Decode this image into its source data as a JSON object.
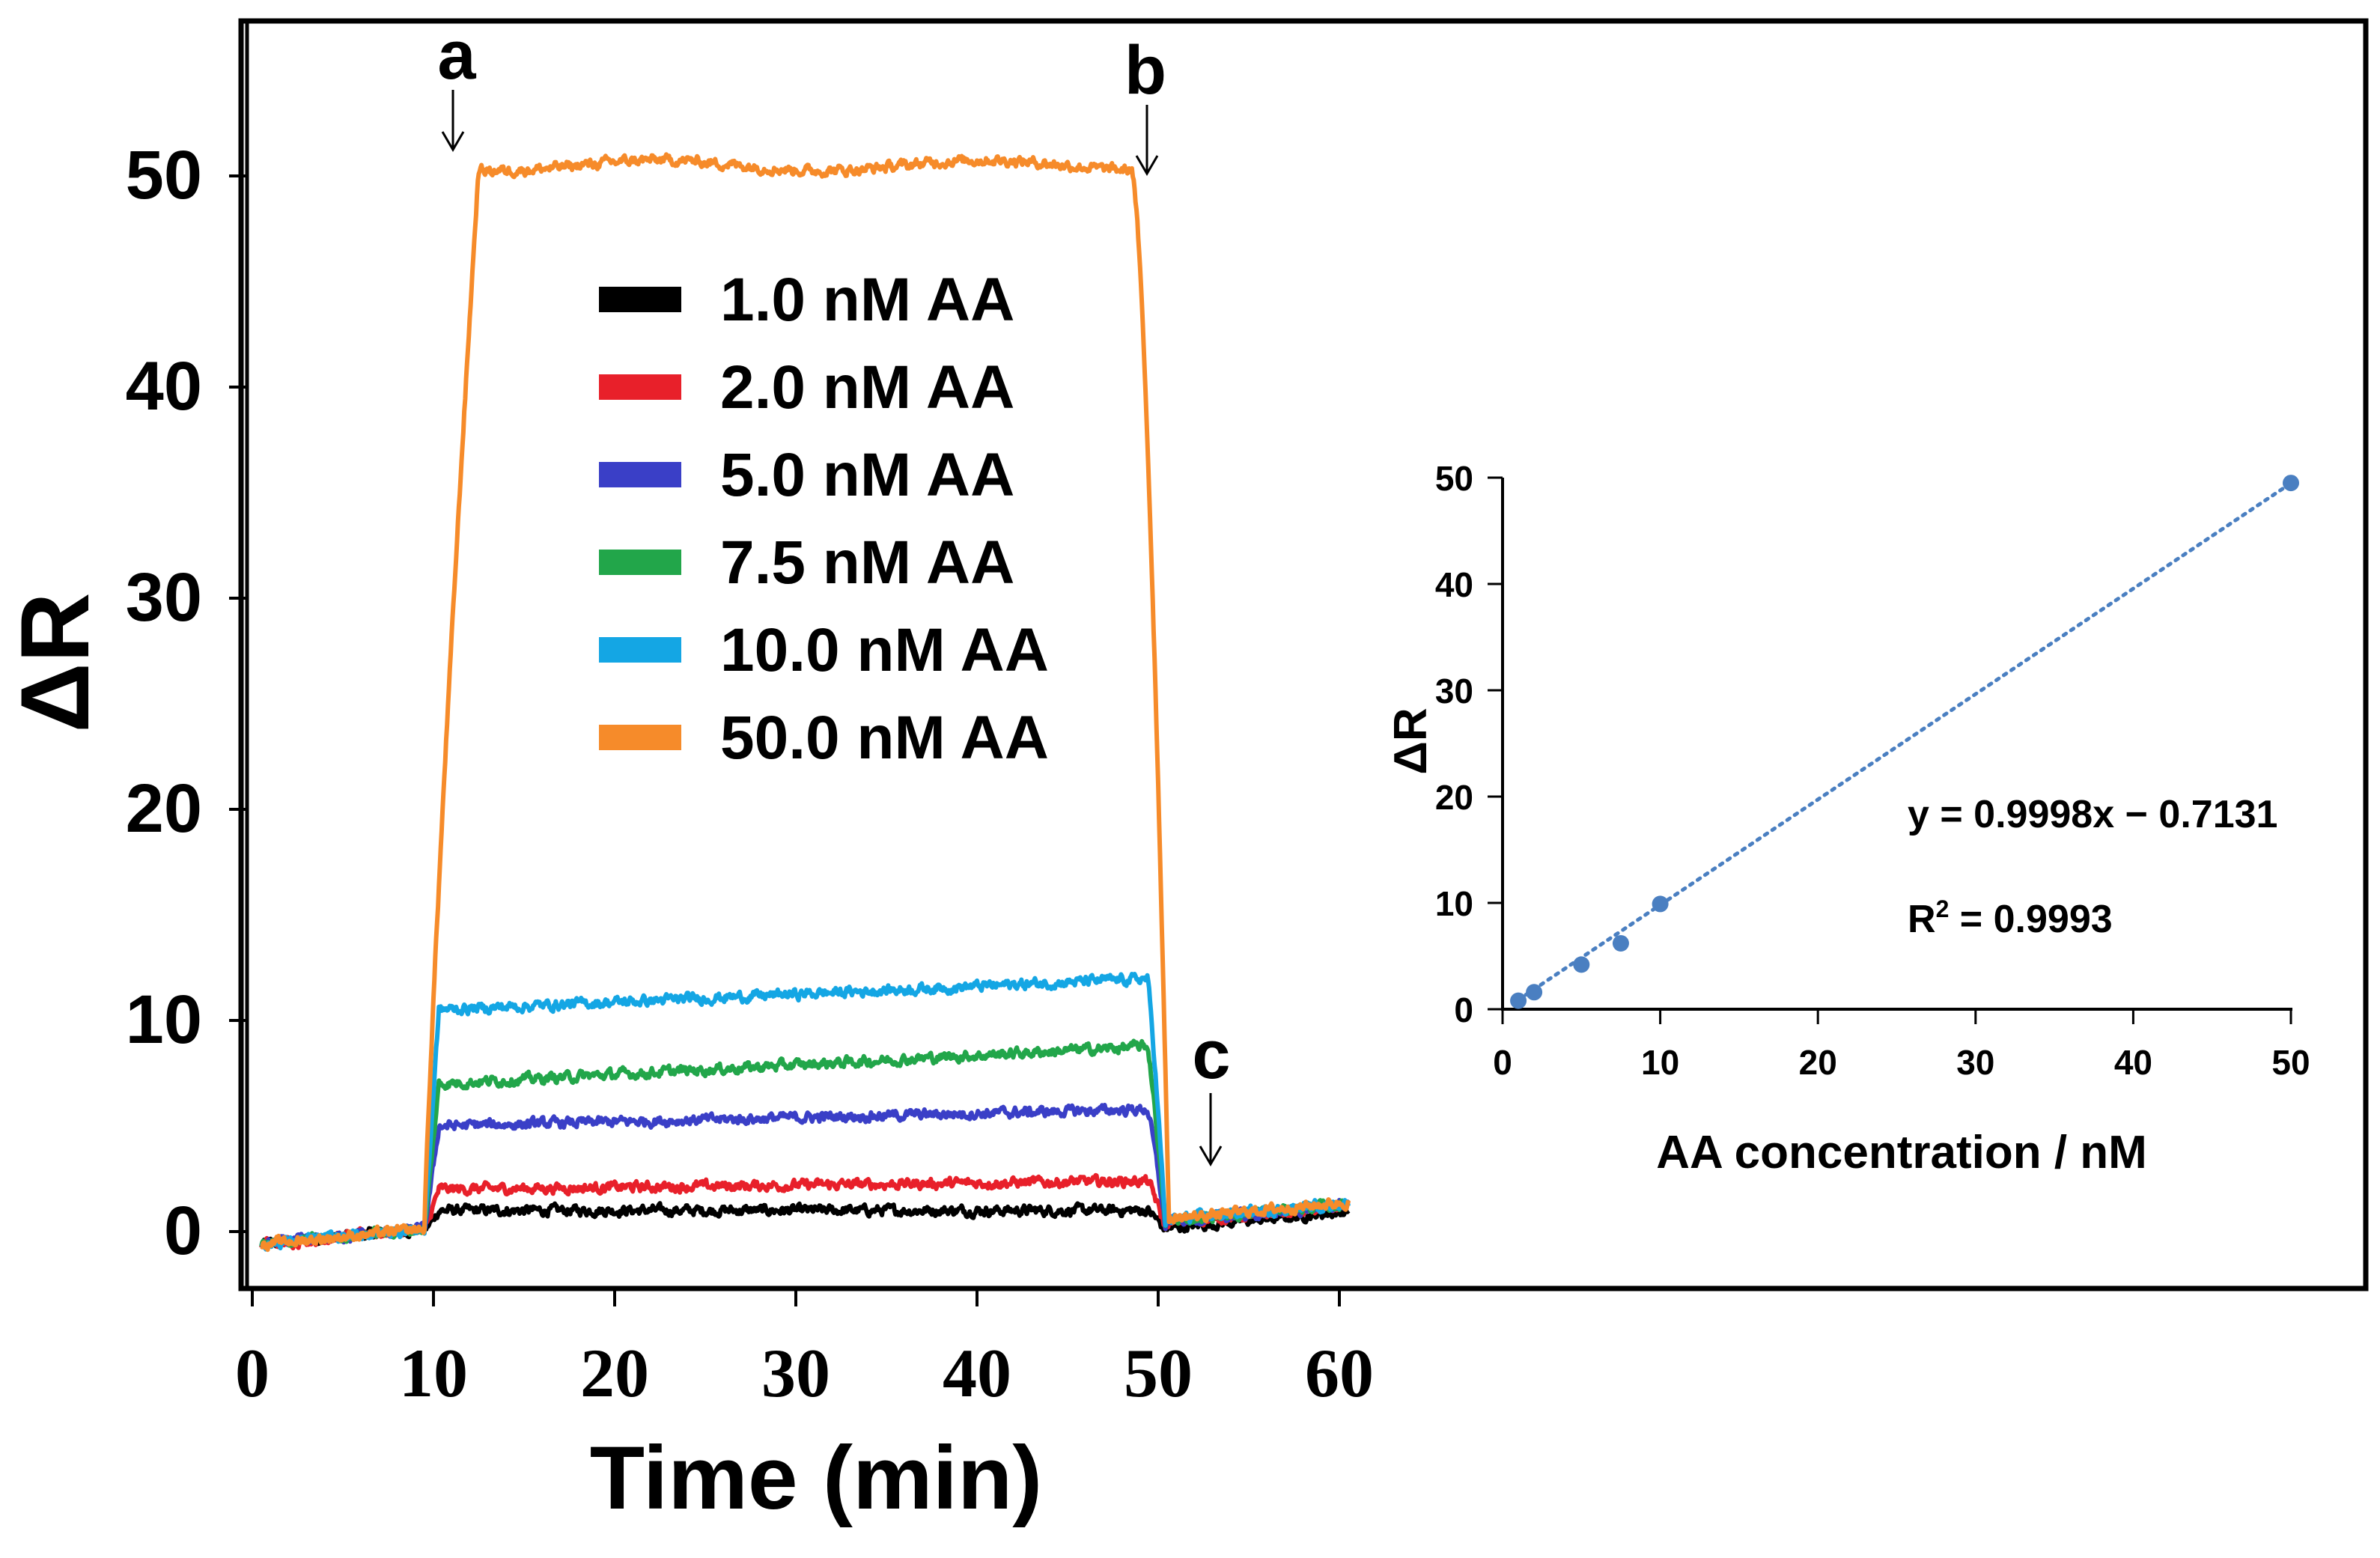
{
  "chart_data": [
    {
      "type": "line",
      "title": "",
      "xlabel": "Time (min)",
      "ylabel": "ΔR",
      "xlim": [
        0,
        60
      ],
      "ylim": [
        -2,
        55
      ],
      "xticks": [
        "0",
        "10",
        "20",
        "30",
        "40",
        "50",
        "60"
      ],
      "yticks": [
        "0",
        "10",
        "20",
        "30",
        "40",
        "50"
      ],
      "grid": false,
      "legend_position": "upper-center",
      "annotations": [
        {
          "label": "a",
          "x": 11.5,
          "y": 50.5
        },
        {
          "label": "b",
          "x": 49.5,
          "y": 50.5
        },
        {
          "label": "c",
          "x": 53,
          "y": 3
        }
      ],
      "x_start": 0.5,
      "x_end": 60.5,
      "rise_start": 9.5,
      "fall_start": 50,
      "series": [
        {
          "name": "1.0 nM AA",
          "color": "#000000",
          "plateau_start": 1.0,
          "plateau_end": 1.0,
          "recovery": 0.3
        },
        {
          "name": "2.0 nM AA",
          "color": "#e8202a",
          "plateau_start": 2.0,
          "plateau_end": 2.4,
          "recovery": 0.8
        },
        {
          "name": "5.0 nM AA",
          "color": "#3a3fc7",
          "plateau_start": 5.0,
          "plateau_end": 5.8,
          "recovery": 0.9
        },
        {
          "name": "7.5 nM AA",
          "color": "#22a64a",
          "plateau_start": 7.0,
          "plateau_end": 8.8,
          "recovery": 1.0
        },
        {
          "name": "10.0 nM AA",
          "color": "#14a6e4",
          "plateau_start": 10.5,
          "plateau_end": 12.0,
          "recovery": 1.1
        },
        {
          "name": "50.0 nM AA",
          "color": "#f68b2a",
          "plateau_start": 50.5,
          "plateau_end": 50.5,
          "recovery": 1.2
        }
      ]
    },
    {
      "type": "scatter",
      "title": "",
      "xlabel": "AA concentration / nM",
      "ylabel": "ΔR",
      "xlim": [
        0,
        50
      ],
      "ylim": [
        0,
        50
      ],
      "xticks": [
        "0",
        "10",
        "20",
        "30",
        "40",
        "50"
      ],
      "yticks": [
        "0",
        "10",
        "20",
        "30",
        "40",
        "50"
      ],
      "points": [
        {
          "x": 1.0,
          "y": 0.8
        },
        {
          "x": 2.0,
          "y": 1.6
        },
        {
          "x": 5.0,
          "y": 4.2
        },
        {
          "x": 7.5,
          "y": 6.2
        },
        {
          "x": 10.0,
          "y": 9.9
        },
        {
          "x": 50.0,
          "y": 49.5
        }
      ],
      "fit": {
        "slope": 0.9998,
        "intercept": -0.7131
      },
      "equation": "y = 0.9998x − 0.7131",
      "r2_label": "R",
      "r2_superscript": "2",
      "r2_value": " = 0.9993",
      "color": "#4a7fc1"
    }
  ]
}
